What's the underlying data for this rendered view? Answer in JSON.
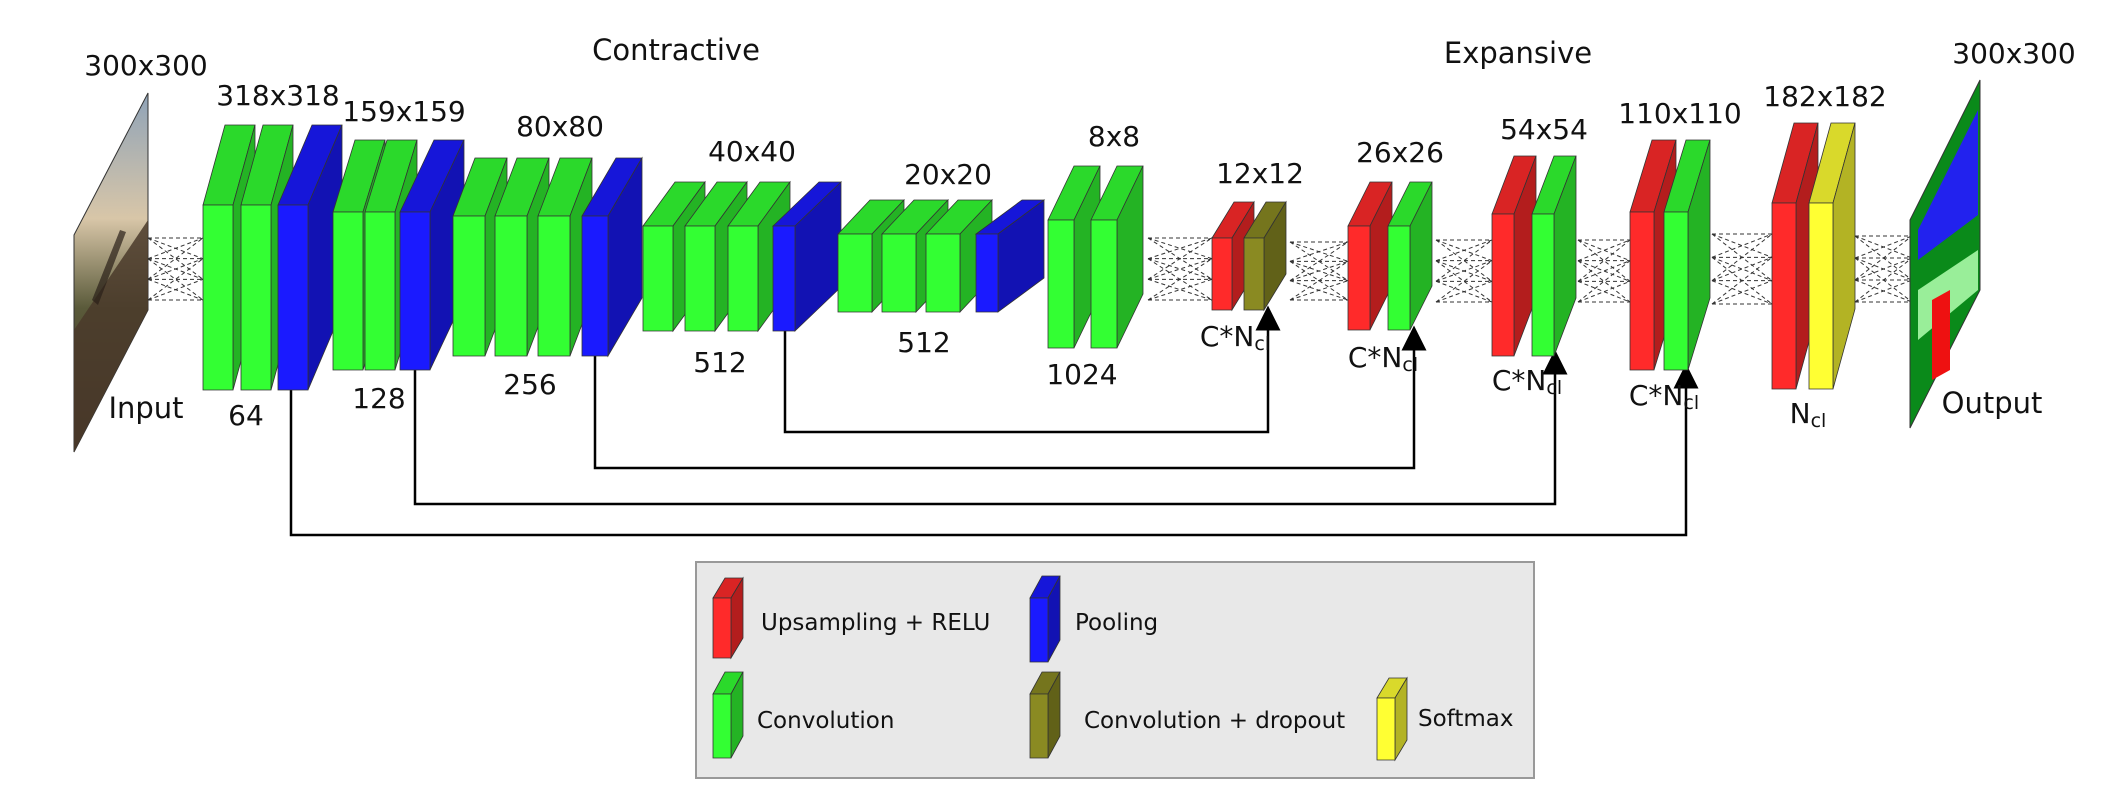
{
  "colors": {
    "upsampling": "#ff2a2a",
    "pooling": "#1a1aff",
    "convolution": "#33ff33",
    "dropout": "#8a8a22",
    "softmax": "#ffff33",
    "legend_bg": "#e8e8e8"
  },
  "sections": {
    "contractive": "Contractive",
    "expansive": "Expansive"
  },
  "input": {
    "size": "300x300",
    "label": "Input"
  },
  "output": {
    "size": "300x300",
    "label": "Output"
  },
  "contractive_blocks": [
    {
      "size": "318x318",
      "channels": "64"
    },
    {
      "size": "159x159",
      "channels": "128"
    },
    {
      "size": "80x80",
      "channels": "256"
    },
    {
      "size": "40x40",
      "channels": "512"
    },
    {
      "size": "20x20",
      "channels": "512"
    },
    {
      "size": "8x8",
      "channels": "1024"
    }
  ],
  "expansive_blocks": [
    {
      "size": "12x12",
      "channels_main": "C*N",
      "channels_sub": "cl"
    },
    {
      "size": "26x26",
      "channels_main": "C*N",
      "channels_sub": "cl"
    },
    {
      "size": "54x54",
      "channels_main": "C*N",
      "channels_sub": "cl"
    },
    {
      "size": "110x110",
      "channels_main": "C*N",
      "channels_sub": "cl"
    },
    {
      "size": "182x182",
      "channels_main": "N",
      "channels_sub": "cl"
    }
  ],
  "legend": {
    "upsampling": "Upsampling + RELU",
    "pooling": "Pooling",
    "convolution": "Convolution",
    "dropout": "Convolution + dropout",
    "softmax": "Softmax"
  }
}
